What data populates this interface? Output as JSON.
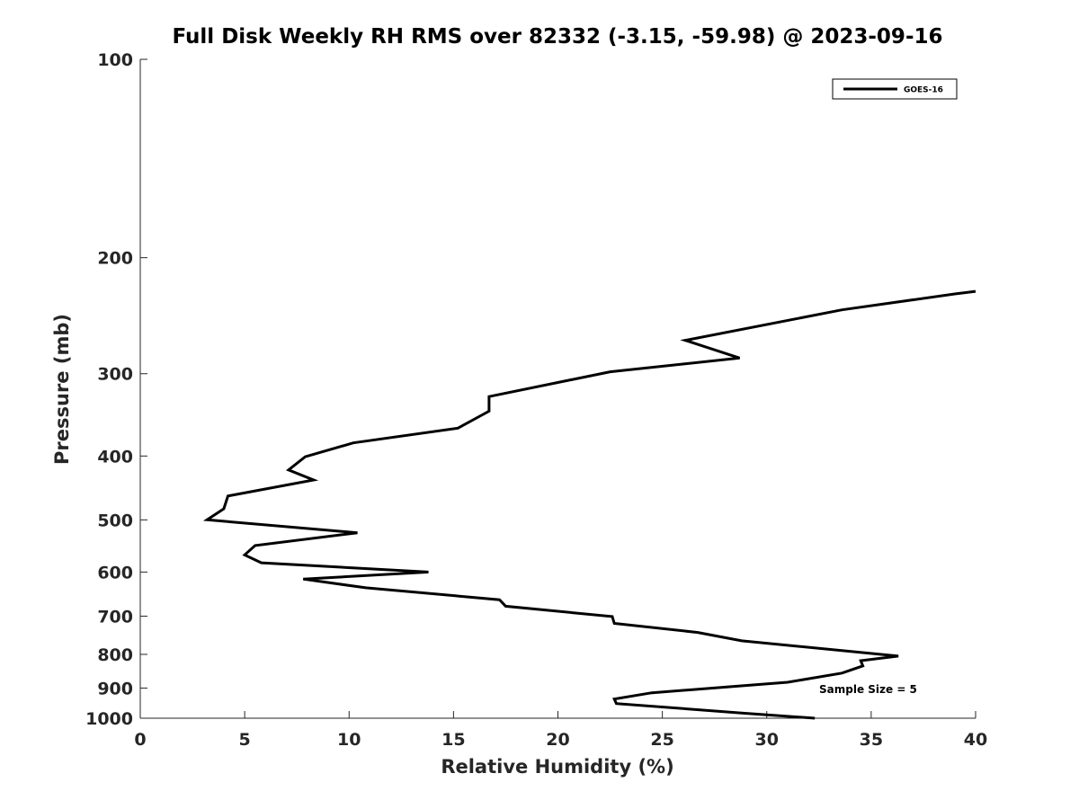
{
  "chart_data": {
    "type": "line",
    "title": "Full Disk Weekly RH RMS over 82332 (-3.15, -59.98) @ 2023-09-16",
    "xlabel": "Relative Humidity (%)",
    "ylabel": "Pressure (mb)",
    "xlim": [
      0,
      40
    ],
    "ylim": [
      100,
      1000
    ],
    "y_scale": "log",
    "y_reversed": true,
    "grid": false,
    "x_ticks": [
      0,
      5,
      10,
      15,
      20,
      25,
      30,
      35,
      40
    ],
    "x_tick_labels": [
      "0",
      "5",
      "10",
      "15",
      "20",
      "25",
      "30",
      "35",
      "40"
    ],
    "y_ticks": [
      100,
      200,
      300,
      400,
      500,
      600,
      700,
      800,
      900,
      1000
    ],
    "y_tick_labels": [
      "100",
      "200",
      "300",
      "400",
      "500",
      "600",
      "700",
      "800",
      "900",
      "1000"
    ],
    "legend": {
      "position": "top-right",
      "entries": [
        "GOES-16"
      ]
    },
    "annotation": "Sample Size = 5",
    "line_color": "#000000",
    "series": [
      {
        "name": "GOES-16",
        "x": [
          40.0,
          39.0,
          33.6,
          26.1,
          28.7,
          22.5,
          16.7,
          16.7,
          15.2,
          10.2,
          7.9,
          7.1,
          8.3,
          4.2,
          4.0,
          3.2,
          10.4,
          5.5,
          5.0,
          5.8,
          13.8,
          7.8,
          10.8,
          17.2,
          17.5,
          22.6,
          22.7,
          26.7,
          28.8,
          36.3,
          34.5,
          34.6,
          33.6,
          31.0,
          24.5,
          22.7,
          22.8,
          28.8,
          32.3
        ],
        "y": [
          225,
          227,
          240,
          267,
          284,
          298,
          325,
          342,
          363,
          382,
          401,
          420,
          435,
          460,
          481,
          500,
          523,
          547,
          565,
          581,
          600,
          615,
          634,
          661,
          676,
          701,
          718,
          741,
          763,
          805,
          818,
          833,
          854,
          882,
          915,
          935,
          950,
          982,
          1000
        ]
      }
    ]
  }
}
